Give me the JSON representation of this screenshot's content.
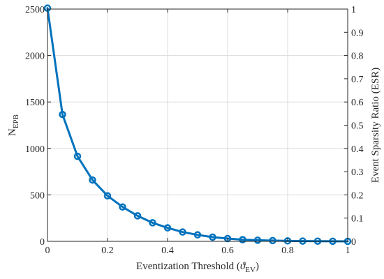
{
  "chart_data": {
    "type": "line",
    "title": "",
    "xlabel": "Eventization Threshold (ϑ_EV)",
    "xlabel_main": "Eventization Threshold (",
    "xlabel_symbol": "ϑ",
    "xlabel_sub": "EV",
    "xlabel_close": ")",
    "ylabel": "N_EPB",
    "ylabel_main": "N",
    "ylabel_sub": "EPB",
    "ylabel_right": "Event Sparsity Ratio (ESR)",
    "xlim": [
      0,
      1
    ],
    "ylim": [
      0,
      2500
    ],
    "ylim_right": [
      0,
      1
    ],
    "xticks": [
      "0",
      "0.2",
      "0.4",
      "0.6",
      "0.8",
      "1"
    ],
    "yticks": [
      "0",
      "500",
      "1000",
      "1500",
      "2000",
      "2500"
    ],
    "yticks_right": [
      "0",
      "0.1",
      "0.2",
      "0.3",
      "0.4",
      "0.5",
      "0.6",
      "0.7",
      "0.8",
      "0.9",
      "1"
    ],
    "grid": true,
    "series": [
      {
        "color": "#0072BD",
        "x": [
          0,
          0.05,
          0.1,
          0.15,
          0.2,
          0.25,
          0.3,
          0.35,
          0.4,
          0.45,
          0.5,
          0.55,
          0.6,
          0.65,
          0.7,
          0.75,
          0.8,
          0.85,
          0.9,
          0.95,
          1.0
        ],
        "y": [
          2510,
          1365,
          915,
          660,
          490,
          370,
          275,
          200,
          145,
          100,
          70,
          45,
          30,
          18,
          12,
          8,
          5,
          3,
          2,
          1,
          0
        ]
      }
    ]
  }
}
